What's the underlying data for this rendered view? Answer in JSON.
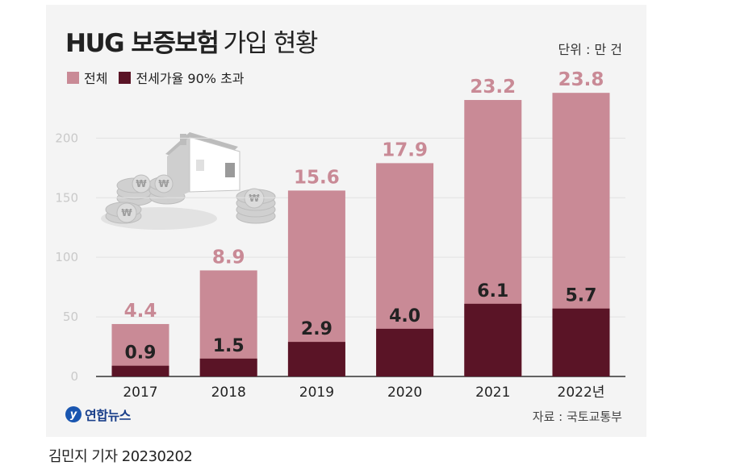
{
  "header": {
    "title_bold": "HUG 보증보험",
    "title_light": "가입 현황",
    "unit": "단위 : 만 건"
  },
  "legend": {
    "total_label": "전체",
    "over90_label": "전세가율 90% 초과"
  },
  "colors": {
    "total": "#c98a96",
    "over90": "#5a1426",
    "total_label": "#c98a96",
    "over90_label": "#222222",
    "axis": "#333333",
    "tick": "#c9c9c9",
    "grid": "#e2e2e2"
  },
  "chart_data": {
    "type": "bar",
    "title": "HUG 보증보험 가입 현황",
    "xlabel": "",
    "ylabel": "",
    "ylim": [
      0,
      230
    ],
    "yticks": [
      "0",
      "50",
      "100",
      "150",
      "200"
    ],
    "ytick_values": [
      0,
      50,
      100,
      150,
      200
    ],
    "categories": [
      "2017",
      "2018",
      "2019",
      "2020",
      "2021",
      "2022년"
    ],
    "series": [
      {
        "name": "전체",
        "values": [
          44,
          89,
          156,
          179,
          232,
          238
        ],
        "labels": [
          "4.4",
          "8.9",
          "15.6",
          "17.9",
          "23.2",
          "23.8"
        ]
      },
      {
        "name": "전세가율 90% 초과",
        "values": [
          9,
          15,
          29,
          40,
          61,
          57
        ],
        "labels": [
          "0.9",
          "1.5",
          "2.9",
          "4.0",
          "6.1",
          "5.7"
        ]
      }
    ]
  },
  "footer": {
    "logo_glyph": "y",
    "logo_text": "연합뉴스",
    "source": "자료 : 국토교통부"
  },
  "credit": "김민지 기자  20230202"
}
